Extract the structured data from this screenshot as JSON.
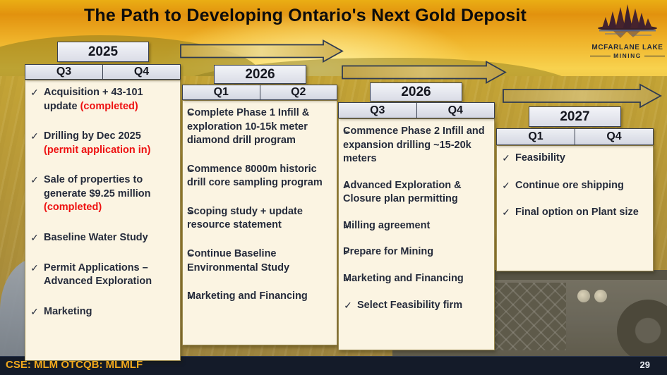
{
  "title": "The Path to Developing Ontario's Next Gold Deposit",
  "logo": {
    "name": "MCFARLANE LAKE",
    "subtitle": "MINING"
  },
  "footer": {
    "ticker": "CSE: MLM OTCQB: MLMLF",
    "page_number": "29"
  },
  "colors": {
    "red_highlight": "#ee1111",
    "ticker_gold": "#f2a91c",
    "box_border_navy": "#39404f",
    "content_cream": "#fbf4e2",
    "content_border_tan": "#9c8b51",
    "arrow_gold": "#d7ba62",
    "footer_bar": "#141b29"
  },
  "columns": [
    {
      "year": "2025",
      "quarters": [
        "Q3",
        "Q4"
      ],
      "items": [
        {
          "bullet": "check",
          "segments": [
            {
              "text": "Acquisition + 43-101 update ",
              "style": "normal"
            },
            {
              "text": "(completed)",
              "style": "red"
            }
          ]
        },
        {
          "bullet": "check",
          "segments": [
            {
              "text": "Drilling by Dec 2025 ",
              "style": "normal"
            },
            {
              "text": "(permit application in)",
              "style": "red"
            }
          ]
        },
        {
          "bullet": "check",
          "segments": [
            {
              "text": "Sale of properties to generate $9.25 million ",
              "style": "normal"
            },
            {
              "text": "(completed)",
              "style": "red"
            }
          ]
        },
        {
          "bullet": "check",
          "segments": [
            {
              "text": "Baseline Water Study",
              "style": "normal"
            }
          ]
        },
        {
          "bullet": "check",
          "segments": [
            {
              "text": "Permit Applications – Advanced Exploration",
              "style": "normal"
            }
          ]
        },
        {
          "bullet": "check",
          "segments": [
            {
              "text": "Marketing",
              "style": "normal"
            }
          ]
        }
      ]
    },
    {
      "year": "2026",
      "quarters": [
        "Q1",
        "Q2"
      ],
      "items": [
        {
          "bullet": "arrow",
          "segments": [
            {
              "text": "Complete Phase 1 Infill & exploration 10-15k meter diamond drill program",
              "style": "normal"
            }
          ]
        },
        {
          "bullet": "arrow",
          "segments": [
            {
              "text": "Commence 8000m historic drill core sampling program",
              "style": "normal"
            }
          ]
        },
        {
          "bullet": "arrow",
          "segments": [
            {
              "text": "Scoping study + update resource statement",
              "style": "normal"
            }
          ]
        },
        {
          "bullet": "arrow",
          "segments": [
            {
              "text": "Continue Baseline Environmental Study",
              "style": "normal"
            }
          ]
        },
        {
          "bullet": "arrow",
          "segments": [
            {
              "text": "Marketing and Financing",
              "style": "normal"
            }
          ]
        }
      ]
    },
    {
      "year": "2026",
      "quarters": [
        "Q3",
        "Q4"
      ],
      "items": [
        {
          "bullet": "arrow",
          "segments": [
            {
              "text": "Commence Phase 2 Infill and expansion drilling ~15-20k meters",
              "style": "normal"
            }
          ]
        },
        {
          "bullet": "arrow",
          "segments": [
            {
              "text": "Advanced Exploration & Closure plan permitting",
              "style": "normal"
            }
          ]
        },
        {
          "bullet": "arrow",
          "segments": [
            {
              "text": "Milling agreement",
              "style": "normal"
            }
          ]
        },
        {
          "bullet": "arrow",
          "segments": [
            {
              "text": "Prepare for Mining",
              "style": "normal"
            }
          ]
        },
        {
          "bullet": "arrow",
          "segments": [
            {
              "text": "Marketing and Financing",
              "style": "normal"
            }
          ]
        },
        {
          "bullet": "check",
          "segments": [
            {
              "text": "Select Feasibility firm",
              "style": "normal"
            }
          ]
        }
      ]
    },
    {
      "year": "2027",
      "quarters": [
        "Q1",
        "Q4"
      ],
      "items": [
        {
          "bullet": "check",
          "segments": [
            {
              "text": "Feasibility",
              "style": "normal"
            }
          ]
        },
        {
          "bullet": "check",
          "segments": [
            {
              "text": "Continue ore shipping",
              "style": "normal"
            }
          ]
        },
        {
          "bullet": "check",
          "segments": [
            {
              "text": "Final option on Plant size",
              "style": "normal"
            }
          ]
        }
      ]
    }
  ]
}
